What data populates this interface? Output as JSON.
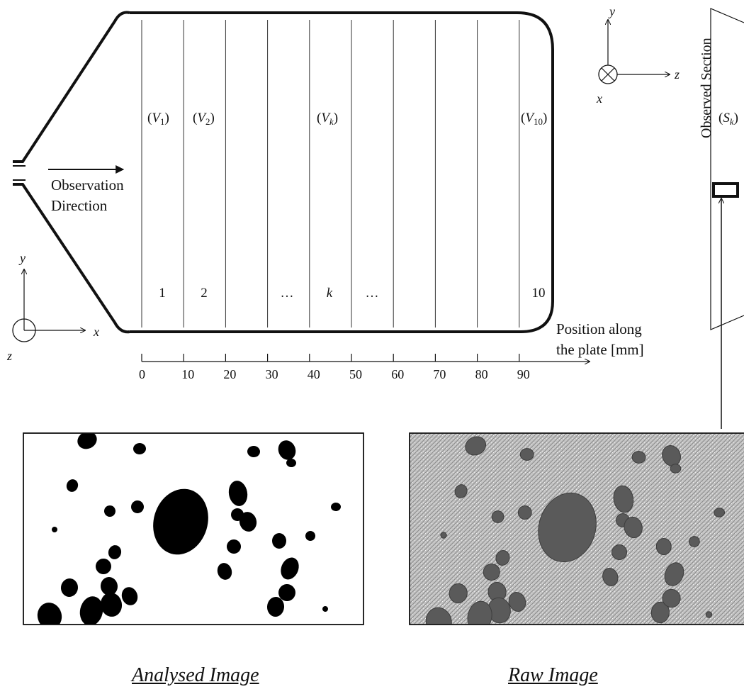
{
  "segments": {
    "volume_labels": [
      {
        "base": "V",
        "sub": "1"
      },
      {
        "base": "V",
        "sub": "2"
      },
      {
        "base": "V",
        "sub": "k"
      },
      {
        "base": "V",
        "sub": "10"
      }
    ],
    "index_labels": [
      "1",
      "2",
      "…",
      "k",
      "…",
      "10"
    ]
  },
  "observation": {
    "line1": "Observation",
    "line2": "Direction"
  },
  "axis_top": {
    "y": "y",
    "z": "z",
    "x": "x"
  },
  "axis_left": {
    "y": "y",
    "x": "x",
    "z": "z"
  },
  "scale": {
    "label_line1": "Position along",
    "label_line2": "the plate [mm]",
    "ticks": [
      "0",
      "10",
      "20",
      "30",
      "40",
      "50",
      "60",
      "70",
      "80",
      "90"
    ]
  },
  "section": {
    "label": "Observed Section",
    "s_base": "S",
    "s_sub": "k"
  },
  "captions": {
    "analysed": "Analysed Image",
    "raw": "Raw Image"
  },
  "colors": {
    "ink": "#111111",
    "raw_background": "#b9b9b9",
    "particle_dark": "#5a5a5a"
  }
}
